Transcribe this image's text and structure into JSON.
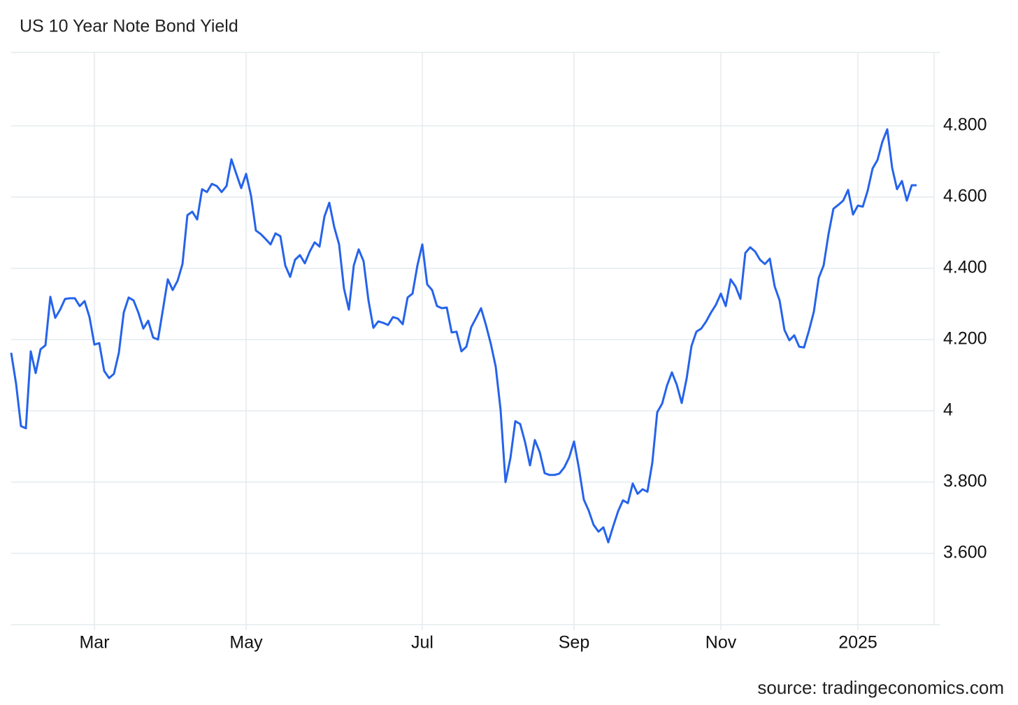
{
  "chart_data": {
    "type": "line",
    "title": "US 10 Year Note Bond Yield",
    "source": "source: tradingeconomics.com",
    "color": "#2563eb",
    "grid": true,
    "ylim": [
      3.4,
      5.0
    ],
    "yticks": [
      {
        "value": 3.6,
        "label": "3.600"
      },
      {
        "value": 3.8,
        "label": "3.800"
      },
      4,
      {
        "value": 4.2,
        "label": "4.200"
      },
      {
        "value": 4.4,
        "label": "4.400"
      },
      {
        "value": 4.6,
        "label": "4.600"
      },
      {
        "value": 4.8,
        "label": "4.800"
      }
    ],
    "categories": [
      null,
      null,
      null,
      null,
      null,
      null,
      null,
      null,
      null,
      null,
      null,
      null,
      null,
      null,
      null,
      null,
      null,
      "Mar",
      null,
      null,
      null,
      null,
      null,
      null,
      null,
      null,
      null,
      null,
      null,
      null,
      null,
      null,
      null,
      null,
      null,
      null,
      null,
      null,
      null,
      null,
      null,
      null,
      null,
      null,
      null,
      null,
      null,
      null,
      "May",
      null,
      null,
      null,
      null,
      null,
      null,
      null,
      null,
      null,
      null,
      null,
      null,
      null,
      null,
      null,
      null,
      null,
      null,
      null,
      null,
      null,
      null,
      null,
      null,
      null,
      null,
      null,
      null,
      null,
      null,
      null,
      null,
      null,
      null,
      null,
      "Jul",
      null,
      null,
      null,
      null,
      null,
      null,
      null,
      null,
      null,
      null,
      null,
      null,
      null,
      null,
      null,
      null,
      null,
      null,
      null,
      null,
      null,
      null,
      null,
      null,
      null,
      null,
      null,
      null,
      null,
      null,
      "Sep",
      null,
      null,
      null,
      null,
      null,
      null,
      null,
      null,
      null,
      null,
      null,
      null,
      null,
      null,
      null,
      null,
      null,
      null,
      null,
      null,
      null,
      null,
      null,
      null,
      null,
      null,
      null,
      null,
      null,
      "Nov",
      null,
      null,
      null,
      null,
      null,
      null,
      null,
      null,
      null,
      null,
      null,
      null,
      null,
      null,
      null,
      null,
      null,
      null,
      null,
      null,
      null,
      null,
      null,
      null,
      null,
      null,
      null,
      "2025",
      null,
      null,
      null,
      null,
      null,
      null,
      null,
      null,
      null,
      null,
      null,
      null
    ],
    "values": [
      4.163,
      4.076,
      3.957,
      3.951,
      4.167,
      4.106,
      4.173,
      4.184,
      4.32,
      4.261,
      4.284,
      4.314,
      4.316,
      4.316,
      4.294,
      4.308,
      4.263,
      4.186,
      4.19,
      4.112,
      4.092,
      4.104,
      4.163,
      4.276,
      4.318,
      4.31,
      4.275,
      4.231,
      4.253,
      4.206,
      4.2,
      4.284,
      4.369,
      4.339,
      4.365,
      4.412,
      4.549,
      4.559,
      4.537,
      4.622,
      4.614,
      4.637,
      4.631,
      4.614,
      4.631,
      4.706,
      4.665,
      4.625,
      4.665,
      4.604,
      4.506,
      4.496,
      4.482,
      4.467,
      4.498,
      4.49,
      4.408,
      4.376,
      4.424,
      4.437,
      4.414,
      4.447,
      4.473,
      4.461,
      4.545,
      4.584,
      4.516,
      4.467,
      4.343,
      4.284,
      4.408,
      4.453,
      4.42,
      4.31,
      4.233,
      4.251,
      4.247,
      4.241,
      4.263,
      4.259,
      4.243,
      4.318,
      4.329,
      4.408,
      4.467,
      4.355,
      4.339,
      4.294,
      4.288,
      4.29,
      4.22,
      4.222,
      4.167,
      4.18,
      4.235,
      4.261,
      4.288,
      4.241,
      4.188,
      4.124,
      4.002,
      3.8,
      3.867,
      3.971,
      3.963,
      3.912,
      3.847,
      3.918,
      3.884,
      3.825,
      3.82,
      3.82,
      3.824,
      3.841,
      3.869,
      3.914,
      3.839,
      3.751,
      3.72,
      3.68,
      3.661,
      3.673,
      3.631,
      3.676,
      3.718,
      3.749,
      3.741,
      3.796,
      3.767,
      3.78,
      3.773,
      3.855,
      3.996,
      4.02,
      4.071,
      4.108,
      4.073,
      4.022,
      4.09,
      4.182,
      4.222,
      4.231,
      4.251,
      4.276,
      4.298,
      4.329,
      4.294,
      4.369,
      4.349,
      4.314,
      4.443,
      4.459,
      4.447,
      4.424,
      4.412,
      4.427,
      4.349,
      4.31,
      4.227,
      4.198,
      4.212,
      4.18,
      4.178,
      4.225,
      4.278,
      4.373,
      4.408,
      4.496,
      4.567,
      4.578,
      4.59,
      4.62,
      4.551,
      4.576,
      4.573,
      4.618,
      4.68,
      4.704,
      4.755,
      4.79,
      4.682,
      4.622,
      4.645,
      4.59,
      4.633,
      4.633
    ]
  }
}
